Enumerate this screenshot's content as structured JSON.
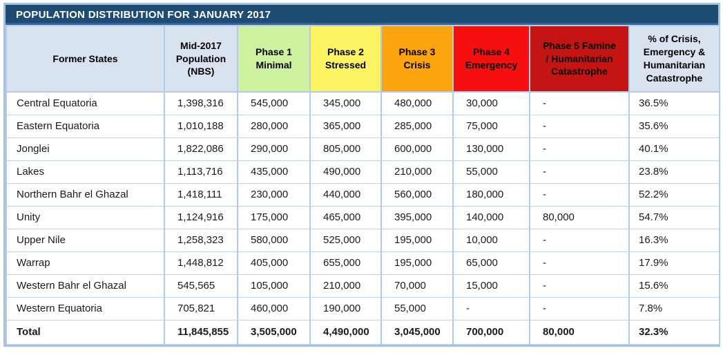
{
  "title": "POPULATION DISTRIBUTION FOR JANUARY 2017",
  "colors": {
    "title_bar_bg": "#1E4C74",
    "title_bar_text": "#FFFFFF",
    "title_underline": "#31669B",
    "outer_border": "#A5C4E3",
    "grid_line": "#B3CBE8",
    "header_default_bg": "#D9E2EF",
    "phase1_green": "#CDF2A0",
    "phase2_yellow": "#FCF462",
    "phase3_orange": "#FCA40D",
    "phase4_red": "#F50F0F",
    "phase5_dark_red": "#C41414",
    "body_text": "#1A1A1A"
  },
  "columns": [
    {
      "id": "former-states",
      "label": "Former States",
      "bg": "#D9E2EF",
      "text_color": "#000000"
    },
    {
      "id": "mid-2017-population-nbs",
      "label": "Mid-2017 Population (NBS)",
      "bg": "#D9E2EF",
      "text_color": "#000000"
    },
    {
      "id": "phase-1-minimal",
      "label": "Phase 1 Minimal",
      "bg": "#CDF2A0",
      "text_color": "#000000"
    },
    {
      "id": "phase-2-stressed",
      "label": "Phase 2 Stressed",
      "bg": "#FCF462",
      "text_color": "#000000"
    },
    {
      "id": "phase-3-crisis",
      "label": "Phase 3 Crisis",
      "bg": "#FCA40D",
      "text_color": "#000000"
    },
    {
      "id": "phase-4-emergency",
      "label": "Phase 4 Emergency",
      "bg": "#F50F0F",
      "text_color": "#000000"
    },
    {
      "id": "phase-5-famine-humanitarian-catastrophe",
      "label": "Phase 5 Famine / Humanitarian Catastrophe",
      "bg": "#C41414",
      "text_color": "#000000"
    },
    {
      "id": "pct-crisis-emergency-catastrophe",
      "label": "% of Crisis, Emergency & Humanitarian Catastrophe",
      "bg": "#D9E2EF",
      "text_color": "#000000"
    }
  ],
  "rows": [
    {
      "cells": [
        "Central Equatoria",
        "1,398,316",
        "545,000",
        "345,000",
        "480,000",
        "30,000",
        "-",
        "36.5%"
      ],
      "bold": false
    },
    {
      "cells": [
        "Eastern Equatoria",
        "1,010,188",
        "280,000",
        "365,000",
        "285,000",
        "75,000",
        "-",
        "35.6%"
      ],
      "bold": false
    },
    {
      "cells": [
        "Jonglei",
        "1,822,086",
        "290,000",
        "805,000",
        "600,000",
        "130,000",
        "-",
        "40.1%"
      ],
      "bold": false
    },
    {
      "cells": [
        "Lakes",
        "1,113,716",
        "435,000",
        "490,000",
        "210,000",
        "55,000",
        "-",
        "23.8%"
      ],
      "bold": false
    },
    {
      "cells": [
        "Northern Bahr el Ghazal",
        "1,418,111",
        "230,000",
        "440,000",
        "560,000",
        "180,000",
        "-",
        "52.2%"
      ],
      "bold": false
    },
    {
      "cells": [
        "Unity",
        "1,124,916",
        "175,000",
        "465,000",
        "395,000",
        "140,000",
        "80,000",
        "54.7%"
      ],
      "bold": false
    },
    {
      "cells": [
        "Upper Nile",
        "1,258,323",
        "580,000",
        "525,000",
        "195,000",
        "10,000",
        "-",
        "16.3%"
      ],
      "bold": false
    },
    {
      "cells": [
        "Warrap",
        "1,448,812",
        "405,000",
        "655,000",
        "195,000",
        "65,000",
        "-",
        "17.9%"
      ],
      "bold": false
    },
    {
      "cells": [
        "Western Bahr el Ghazal",
        "545,565",
        "105,000",
        "210,000",
        "70,000",
        "15,000",
        "-",
        "15.6%"
      ],
      "bold": false
    },
    {
      "cells": [
        "Western Equatoria",
        "705,821",
        "460,000",
        "190,000",
        "55,000",
        "-",
        "-",
        "7.8%"
      ],
      "bold": false
    },
    {
      "cells": [
        "Total",
        "11,845,855",
        "3,505,000",
        "4,490,000",
        "3,045,000",
        "700,000",
        "80,000",
        "32.3%"
      ],
      "bold": true
    }
  ]
}
